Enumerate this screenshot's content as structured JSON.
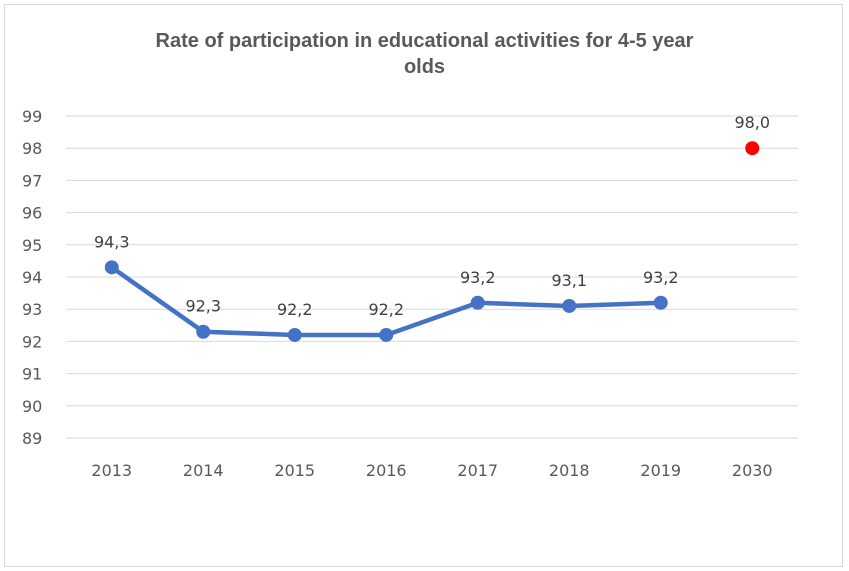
{
  "chart_data": {
    "type": "line",
    "title": "Rate of participation in educational activities for 4-5 year olds",
    "title_lines": [
      "Rate of participation in educational activities for 4-5 year",
      "olds"
    ],
    "categories": [
      "2013",
      "2014",
      "2015",
      "2016",
      "2017",
      "2018",
      "2019",
      "2030"
    ],
    "series": [
      {
        "values": [
          94.3,
          92.3,
          92.2,
          92.2,
          93.2,
          93.1,
          93.2,
          null
        ],
        "labels": [
          "94,3",
          "92,3",
          "92,2",
          "92,2",
          "93,2",
          "93,1",
          "93,2",
          null
        ],
        "color": "#4472c4"
      },
      {
        "values": [
          null,
          null,
          null,
          null,
          null,
          null,
          null,
          98.0
        ],
        "labels": [
          null,
          null,
          null,
          null,
          null,
          null,
          null,
          "98,0"
        ],
        "color": "#ff0000"
      }
    ],
    "ylim": [
      89,
      99
    ],
    "yticks": [
      89,
      90,
      91,
      92,
      93,
      94,
      95,
      96,
      97,
      98,
      99
    ],
    "xlabel": "",
    "ylabel": "",
    "grid": true,
    "legend": false
  }
}
